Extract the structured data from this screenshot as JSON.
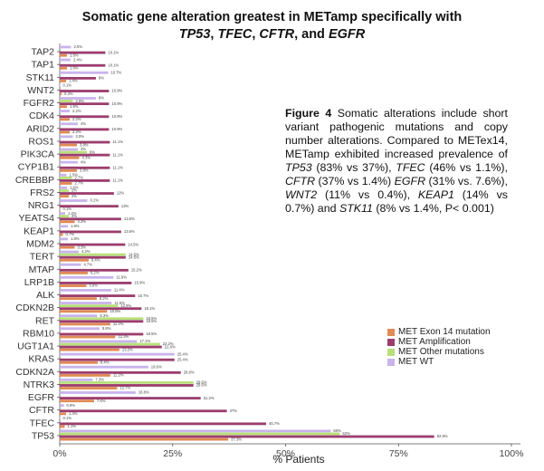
{
  "title": {
    "line1": "Somatic gene alteration greatest in METamp  specifically with",
    "genes": [
      "TP53",
      "TFEC",
      "CFTR",
      "EGFR"
    ],
    "sep": ", ",
    "and_word": ", and "
  },
  "caption": {
    "fig_label": "Figure 4",
    "segments": [
      {
        "t": " Somatic alterations include short variant pathogenic mutations and copy number alterations. Compared to METex14, METamp exhibited increased prevalence of ",
        "i": false
      },
      {
        "t": "TP53",
        "i": true
      },
      {
        "t": " (83% vs 37%), ",
        "i": false
      },
      {
        "t": "TFEC",
        "i": true
      },
      {
        "t": " (46% vs 1.1%), ",
        "i": false
      },
      {
        "t": "CFTR",
        "i": true
      },
      {
        "t": " (37% vs 1.4%) ",
        "i": false
      },
      {
        "t": "EGFR",
        "i": true
      },
      {
        "t": " (31% vs. 7.6%), ",
        "i": false
      },
      {
        "t": "WNT2",
        "i": true
      },
      {
        "t": " (11% vs 0.4%), ",
        "i": false
      },
      {
        "t": "KEAP1",
        "i": true
      },
      {
        "t": " (14% vs 0.7%) and ",
        "i": false
      },
      {
        "t": "STK11",
        "i": true
      },
      {
        "t": " (8% vs 1.4%, P< 0.001)",
        "i": false
      }
    ]
  },
  "legend": [
    {
      "name": "MET Exon 14 mutation",
      "color": "#e08a55"
    },
    {
      "name": "MET Amplification",
      "color": "#9c3d6e"
    },
    {
      "name": "MET Other mutations",
      "color": "#b8e07a"
    },
    {
      "name": "MET WT",
      "color": "#c8b4ec"
    }
  ],
  "chart_data": {
    "type": "bar",
    "orientation": "horizontal",
    "xlabel": "% Patients",
    "xlim": [
      0,
      100
    ],
    "xticks": [
      "0%",
      "25%",
      "50%",
      "75%",
      "100%"
    ],
    "grid": false,
    "legend_position": "right",
    "categories": [
      "TAP2",
      "TAP1",
      "STK11",
      "WNT2",
      "FGFR2",
      "CDK4",
      "ARID2",
      "ROS1",
      "PIK3CA",
      "CYP1B1",
      "CREBBP",
      "FRS2",
      "NRG1",
      "YEATS4",
      "KEAP1",
      "MDM2",
      "TERT",
      "MTAP",
      "LRP1B",
      "ALK",
      "CDKN2B",
      "RET",
      "RBM10",
      "UGT1A1",
      "KRAS",
      "CDKN2A",
      "NTRK3",
      "EGFR",
      "CFTR",
      "TFEC",
      "TP53"
    ],
    "series": [
      {
        "name": "MET WT",
        "values": [
          2.5,
          2.4,
          10.7,
          0.1,
          8,
          2.2,
          4,
          2.9,
          4,
          4,
          1.5,
          1.6,
          6.1,
          1.2,
          1.8,
          1.8,
          4.2,
          4.7,
          11.9,
          11.4,
          11.5,
          8.3,
          8.8,
          17.1,
          25.4,
          19.6,
          7.3,
          16.8,
          0.9,
          0.1,
          60
        ]
      },
      {
        "name": "MET Other mutations",
        "values": [
          0,
          0,
          0,
          0,
          2.9,
          0,
          0,
          0,
          6,
          0,
          2.7,
          2,
          0,
          2,
          0,
          0,
          14.6,
          0,
          0,
          0,
          12.9,
          18.5,
          0,
          22.2,
          0,
          0,
          29.6,
          0,
          0,
          0,
          62
        ]
      },
      {
        "name": "MET Amplification",
        "values": [
          10.1,
          10.1,
          8,
          10.9,
          10.9,
          10.9,
          10.9,
          11.1,
          11.1,
          11.1,
          11.1,
          12,
          13,
          13.6,
          13.6,
          14.5,
          14.6,
          15.2,
          15.9,
          16.7,
          18.1,
          18.5,
          18.5,
          22.6,
          25.4,
          26.8,
          29.6,
          31.2,
          37,
          45.7,
          82.9
        ]
      },
      {
        "name": "MET Exon 14 mutation",
        "values": [
          1.6,
          1.6,
          1.4,
          0.4,
          1.6,
          2.2,
          2.2,
          3.8,
          4.3,
          3.8,
          2.7,
          2,
          0.1,
          3.3,
          0.7,
          3.3,
          6.4,
          6.2,
          5.9,
          8.2,
          10.5,
          11.2,
          12.3,
          13.2,
          8.4,
          11.2,
          12.7,
          7.6,
          1.4,
          1.1,
          37.3
        ]
      }
    ],
    "value_labels": {
      "MET WT": [
        "2.5%",
        "2.4%",
        "10.7%",
        "0.1%",
        "8%",
        "2.2%",
        "4%",
        "2.9%",
        "4%",
        "4%",
        "1.5%",
        "1.6%",
        "6.1%",
        "1.2%",
        "1.8%",
        "1.8%",
        "4.2%",
        "4.7%",
        "11.9%",
        "11.4%",
        "11.5%",
        "8.3%",
        "8.8%",
        "17.1%",
        "25.4%",
        "19.6%",
        "7.3%",
        "16.8%",
        "0.9%",
        "0.1%",
        "60%"
      ],
      "MET Other mutations": [
        "",
        "",
        "",
        "",
        "2.9%",
        "",
        "",
        "",
        "6%",
        "",
        "2.7%",
        "2%",
        "",
        "2%",
        "",
        "",
        "14.6%",
        "",
        "",
        "",
        "12.9%",
        "18.5%",
        "",
        "22.2%",
        "",
        "",
        "29.6%",
        "",
        "",
        "",
        "62%"
      ],
      "MET Amplification": [
        "10.1%",
        "10.1%",
        "8%",
        "10.9%",
        "10.9%",
        "10.9%",
        "10.9%",
        "11.1%",
        "11.1%",
        "11.1%",
        "11.1%",
        "12%",
        "13%",
        "13.6%",
        "13.6%",
        "14.5%",
        "14.6%",
        "15.2%",
        "15.9%",
        "16.7%",
        "18.1%",
        "18.5%",
        "18.5%",
        "22.6%",
        "25.4%",
        "26.8%",
        "29.6%",
        "31.2%",
        "37%",
        "45.7%",
        "82.9%"
      ],
      "MET Exon 14 mutation": [
        "1.6%",
        "1.6%",
        "1.4%",
        "0.4%",
        "1.6%",
        "2.2%",
        "2.2%",
        "3.8%",
        "4.3%",
        "3.8%",
        "2.7%",
        "2%",
        "0.1%",
        "3.3%",
        "0.7%",
        "3.3%",
        "6.4%",
        "6.2%",
        "5.9%",
        "8.2%",
        "10.5%",
        "11.2%",
        "12.3%",
        "13.2%",
        "8.4%",
        "11.2%",
        "12.7%",
        "7.6%",
        "1.4%",
        "1.1%",
        "37.3%"
      ]
    }
  }
}
